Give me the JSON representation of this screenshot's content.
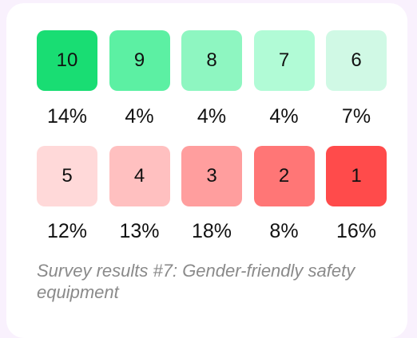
{
  "rows": [
    [
      {
        "score": "10",
        "percent": "14%",
        "color": "#19dd73"
      },
      {
        "score": "9",
        "percent": "4%",
        "color": "#5cf0a3"
      },
      {
        "score": "8",
        "percent": "4%",
        "color": "#8ef6c1"
      },
      {
        "score": "7",
        "percent": "4%",
        "color": "#b1fbd6"
      },
      {
        "score": "6",
        "percent": "7%",
        "color": "#d0f9e5"
      }
    ],
    [
      {
        "score": "5",
        "percent": "12%",
        "color": "#ffd9d9"
      },
      {
        "score": "4",
        "percent": "13%",
        "color": "#ffc0c0"
      },
      {
        "score": "3",
        "percent": "18%",
        "color": "#ff9e9e"
      },
      {
        "score": "2",
        "percent": "8%",
        "color": "#ff7676"
      },
      {
        "score": "1",
        "percent": "16%",
        "color": "#ff4b4b"
      }
    ]
  ],
  "caption": "Survey results #7: Gender-friendly safety equipment"
}
